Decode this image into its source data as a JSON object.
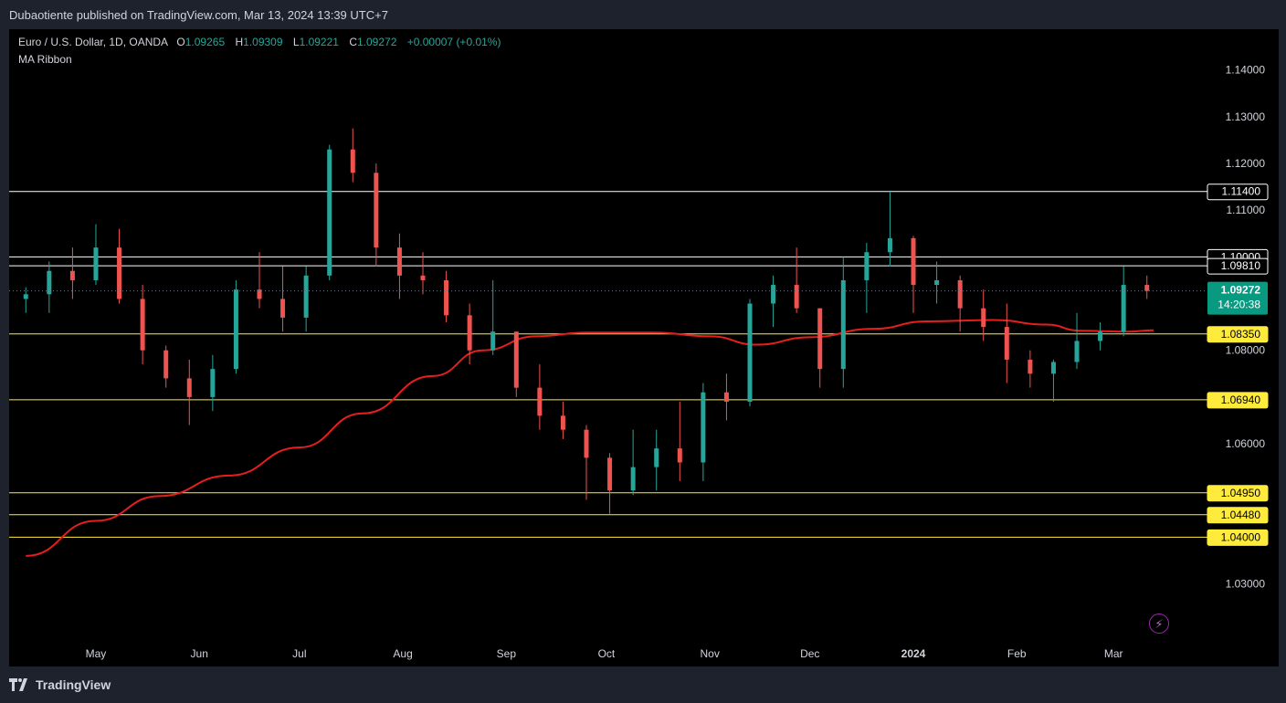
{
  "header": {
    "publisher_text": "Dubaotiente published on TradingView.com, Mar 13, 2024 13:39 UTC+7"
  },
  "legend": {
    "symbol": "Euro / U.S. Dollar, 1D, OANDA",
    "o_label": "O",
    "o_value": "1.09265",
    "h_label": "H",
    "h_value": "1.09309",
    "l_label": "L",
    "l_value": "1.09221",
    "c_label": "C",
    "c_value": "1.09272",
    "change": "+0.00007 (+0.01%)",
    "indicator": "MA Ribbon"
  },
  "footer": {
    "brand": "TradingView"
  },
  "colors": {
    "background": "#000000",
    "frame": "#1e222d",
    "up": "#26a69a",
    "down": "#ef5350",
    "ma": "#e61e1e",
    "white_line": "#ffffff",
    "yellow_line": "#ffeb3b",
    "price_badge": "#089981"
  },
  "chart_data": {
    "type": "candlestick",
    "title": "Euro / U.S. Dollar, 1D, OANDA",
    "ylim": [
      1.026,
      1.146
    ],
    "y_ticks": [
      "1.14000",
      "1.13000",
      "1.12000",
      "1.11000",
      "1.10000",
      "1.08000",
      "1.06000",
      "1.03000"
    ],
    "x_ticks": [
      {
        "label": "May",
        "date": "2023-05-01"
      },
      {
        "label": "Jun",
        "date": "2023-06-01"
      },
      {
        "label": "Jul",
        "date": "2023-07-01"
      },
      {
        "label": "Aug",
        "date": "2023-08-01"
      },
      {
        "label": "Sep",
        "date": "2023-09-01"
      },
      {
        "label": "Oct",
        "date": "2023-10-01"
      },
      {
        "label": "Nov",
        "date": "2023-11-01"
      },
      {
        "label": "Dec",
        "date": "2023-12-01"
      },
      {
        "label": "2024",
        "date": "2024-01-01"
      },
      {
        "label": "Feb",
        "date": "2024-02-01"
      },
      {
        "label": "Mar",
        "date": "2024-03-01"
      }
    ],
    "horizontal_levels": [
      {
        "value": 1.114,
        "label": "1.11400",
        "style": "white"
      },
      {
        "value": 1.1,
        "label": "1.10000",
        "style": "white"
      },
      {
        "value": 1.0981,
        "label": "1.09810",
        "style": "white"
      },
      {
        "value": 1.0835,
        "label": "1.08350",
        "style": "yellow"
      },
      {
        "value": 1.0694,
        "label": "1.06940",
        "style": "yellow"
      },
      {
        "value": 1.0495,
        "label": "1.04950",
        "style": "yellow"
      },
      {
        "value": 1.0448,
        "label": "1.04480",
        "style": "yellow"
      },
      {
        "value": 1.04,
        "label": "1.04000",
        "style": "yellow"
      }
    ],
    "last_price": {
      "value": 1.09272,
      "label": "1.09272",
      "countdown": "14:20:38"
    },
    "ma_series": {
      "name": "MA Ribbon",
      "points": [
        [
          "2023-04-10",
          1.036
        ],
        [
          "2023-05-01",
          1.0435
        ],
        [
          "2023-05-20",
          1.0488
        ],
        [
          "2023-06-10",
          1.0532
        ],
        [
          "2023-07-01",
          1.0592
        ],
        [
          "2023-07-20",
          1.0665
        ],
        [
          "2023-08-10",
          1.0745
        ],
        [
          "2023-08-25",
          1.08
        ],
        [
          "2023-09-10",
          1.083
        ],
        [
          "2023-09-25",
          1.0838
        ],
        [
          "2023-10-15",
          1.0838
        ],
        [
          "2023-11-01",
          1.083
        ],
        [
          "2023-11-15",
          1.0812
        ],
        [
          "2023-12-01",
          1.0828
        ],
        [
          "2023-12-20",
          1.0846
        ],
        [
          "2024-01-05",
          1.0862
        ],
        [
          "2024-01-25",
          1.0865
        ],
        [
          "2024-02-10",
          1.0855
        ],
        [
          "2024-02-20",
          1.0842
        ],
        [
          "2024-03-05",
          1.084
        ],
        [
          "2024-03-13",
          1.0843
        ]
      ]
    },
    "candles": [
      [
        "2023-04-10",
        1.091,
        1.0935,
        1.088,
        1.092
      ],
      [
        "2023-04-17",
        1.092,
        1.099,
        1.088,
        1.097
      ],
      [
        "2023-04-24",
        1.097,
        1.102,
        1.091,
        1.095
      ],
      [
        "2023-05-01",
        1.095,
        1.107,
        1.094,
        1.102
      ],
      [
        "2023-05-08",
        1.102,
        1.106,
        1.09,
        1.091
      ],
      [
        "2023-05-15",
        1.091,
        1.094,
        1.077,
        1.08
      ],
      [
        "2023-05-22",
        1.08,
        1.081,
        1.072,
        1.074
      ],
      [
        "2023-05-29",
        1.074,
        1.078,
        1.064,
        1.07
      ],
      [
        "2023-06-05",
        1.07,
        1.079,
        1.067,
        1.076
      ],
      [
        "2023-06-12",
        1.076,
        1.095,
        1.075,
        1.093
      ],
      [
        "2023-06-19",
        1.093,
        1.101,
        1.089,
        1.091
      ],
      [
        "2023-06-26",
        1.091,
        1.098,
        1.084,
        1.087
      ],
      [
        "2023-07-03",
        1.087,
        1.098,
        1.084,
        1.096
      ],
      [
        "2023-07-10",
        1.096,
        1.124,
        1.095,
        1.123
      ],
      [
        "2023-07-17",
        1.123,
        1.1275,
        1.116,
        1.118
      ],
      [
        "2023-07-24",
        1.118,
        1.12,
        1.098,
        1.102
      ],
      [
        "2023-07-31",
        1.102,
        1.105,
        1.091,
        1.096
      ],
      [
        "2023-08-07",
        1.096,
        1.101,
        1.092,
        1.095
      ],
      [
        "2023-08-14",
        1.095,
        1.097,
        1.086,
        1.0875
      ],
      [
        "2023-08-21",
        1.0875,
        1.09,
        1.077,
        1.08
      ],
      [
        "2023-08-28",
        1.08,
        1.095,
        1.079,
        1.084
      ],
      [
        "2023-09-04",
        1.084,
        1.084,
        1.07,
        1.072
      ],
      [
        "2023-09-11",
        1.072,
        1.077,
        1.063,
        1.066
      ],
      [
        "2023-09-18",
        1.066,
        1.069,
        1.061,
        1.063
      ],
      [
        "2023-09-25",
        1.063,
        1.064,
        1.048,
        1.057
      ],
      [
        "2023-10-02",
        1.057,
        1.058,
        1.045,
        1.05
      ],
      [
        "2023-10-09",
        1.05,
        1.063,
        1.049,
        1.055
      ],
      [
        "2023-10-16",
        1.055,
        1.063,
        1.05,
        1.059
      ],
      [
        "2023-10-23",
        1.059,
        1.069,
        1.052,
        1.056
      ],
      [
        "2023-10-30",
        1.056,
        1.073,
        1.052,
        1.071
      ],
      [
        "2023-11-06",
        1.071,
        1.075,
        1.065,
        1.069
      ],
      [
        "2023-11-13",
        1.069,
        1.091,
        1.068,
        1.09
      ],
      [
        "2023-11-20",
        1.09,
        1.096,
        1.085,
        1.094
      ],
      [
        "2023-11-27",
        1.094,
        1.102,
        1.088,
        1.089
      ],
      [
        "2023-12-04",
        1.089,
        1.089,
        1.072,
        1.076
      ],
      [
        "2023-12-11",
        1.076,
        1.1,
        1.072,
        1.095
      ],
      [
        "2023-12-18",
        1.095,
        1.103,
        1.088,
        1.101
      ],
      [
        "2023-12-25",
        1.101,
        1.114,
        1.098,
        1.104
      ],
      [
        "2024-01-01",
        1.104,
        1.1045,
        1.088,
        1.094
      ],
      [
        "2024-01-08",
        1.094,
        1.099,
        1.09,
        1.095
      ],
      [
        "2024-01-15",
        1.095,
        1.096,
        1.084,
        1.089
      ],
      [
        "2024-01-22",
        1.089,
        1.093,
        1.082,
        1.085
      ],
      [
        "2024-01-29",
        1.085,
        1.09,
        1.073,
        1.078
      ],
      [
        "2024-02-05",
        1.078,
        1.08,
        1.072,
        1.075
      ],
      [
        "2024-02-12",
        1.075,
        1.078,
        1.069,
        1.0775
      ],
      [
        "2024-02-19",
        1.0775,
        1.088,
        1.076,
        1.082
      ],
      [
        "2024-02-26",
        1.082,
        1.086,
        1.08,
        1.084
      ],
      [
        "2024-03-04",
        1.084,
        1.098,
        1.083,
        1.094
      ],
      [
        "2024-03-11",
        1.094,
        1.096,
        1.091,
        1.0927
      ]
    ]
  }
}
